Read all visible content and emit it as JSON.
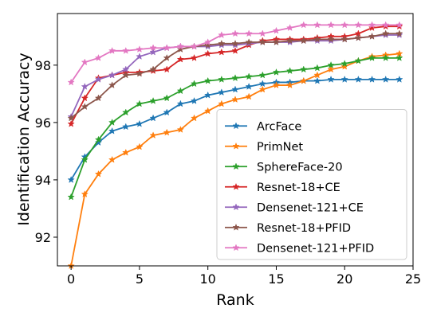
{
  "chart_data": {
    "type": "line",
    "title": "",
    "xlabel": "Rank",
    "ylabel": "Identification Accuracy",
    "xlim": [
      -1,
      25
    ],
    "ylim": [
      91.0,
      99.8
    ],
    "xticks": [
      0,
      5,
      10,
      15,
      20,
      25
    ],
    "yticks": [
      92,
      94,
      96,
      98
    ],
    "xtick_labels": [
      "0",
      "5",
      "10",
      "15",
      "20",
      "25"
    ],
    "ytick_labels": [
      "92",
      "94",
      "96",
      "98"
    ],
    "grid": false,
    "legend_position": "lower-right",
    "x": [
      0,
      1,
      2,
      3,
      4,
      5,
      6,
      7,
      8,
      9,
      10,
      11,
      12,
      13,
      14,
      15,
      16,
      17,
      18,
      19,
      20,
      21,
      22,
      23,
      24
    ],
    "series": [
      {
        "name": "ArcFace",
        "color": "#1f77b4",
        "values": [
          94.0,
          94.8,
          95.3,
          95.7,
          95.85,
          95.95,
          96.15,
          96.35,
          96.65,
          96.75,
          96.95,
          97.05,
          97.15,
          97.25,
          97.35,
          97.4,
          97.4,
          97.45,
          97.45,
          97.5,
          97.5,
          97.5,
          97.5,
          97.5,
          97.5
        ]
      },
      {
        "name": "PrimNet",
        "color": "#ff7f0e",
        "values": [
          91.0,
          93.5,
          94.2,
          94.7,
          94.95,
          95.15,
          95.55,
          95.65,
          95.75,
          96.15,
          96.4,
          96.65,
          96.8,
          96.9,
          97.15,
          97.3,
          97.3,
          97.45,
          97.65,
          97.85,
          97.95,
          98.15,
          98.3,
          98.35,
          98.4
        ]
      },
      {
        "name": "SphereFace-20",
        "color": "#2ca02c",
        "values": [
          93.4,
          94.7,
          95.4,
          96.0,
          96.35,
          96.65,
          96.75,
          96.85,
          97.1,
          97.35,
          97.45,
          97.5,
          97.55,
          97.6,
          97.65,
          97.75,
          97.8,
          97.85,
          97.9,
          98.0,
          98.05,
          98.15,
          98.25,
          98.25,
          98.25
        ]
      },
      {
        "name": "Resnet-18+CE",
        "color": "#d62728",
        "values": [
          95.95,
          96.85,
          97.55,
          97.65,
          97.75,
          97.75,
          97.8,
          97.85,
          98.2,
          98.25,
          98.4,
          98.45,
          98.5,
          98.7,
          98.85,
          98.9,
          98.9,
          98.9,
          98.95,
          99.0,
          99.0,
          99.1,
          99.3,
          99.35,
          99.35
        ]
      },
      {
        "name": "Densenet-121+CE",
        "color": "#9467bd",
        "values": [
          96.2,
          97.25,
          97.5,
          97.65,
          97.85,
          98.3,
          98.45,
          98.6,
          98.65,
          98.65,
          98.65,
          98.7,
          98.7,
          98.75,
          98.8,
          98.8,
          98.8,
          98.85,
          98.85,
          98.85,
          98.9,
          98.95,
          99.0,
          99.05,
          99.05
        ]
      },
      {
        "name": "Resnet-18+PFID",
        "color": "#8c564b",
        "values": [
          96.15,
          96.55,
          96.85,
          97.3,
          97.65,
          97.7,
          97.85,
          98.25,
          98.55,
          98.65,
          98.7,
          98.75,
          98.75,
          98.8,
          98.8,
          98.8,
          98.85,
          98.85,
          98.9,
          98.9,
          98.9,
          98.95,
          99.0,
          99.1,
          99.1
        ]
      },
      {
        "name": "Densenet-121+PFID",
        "color": "#e377c2",
        "values": [
          97.4,
          98.1,
          98.25,
          98.5,
          98.5,
          98.55,
          98.6,
          98.6,
          98.65,
          98.65,
          98.8,
          99.05,
          99.1,
          99.1,
          99.1,
          99.2,
          99.3,
          99.4,
          99.4,
          99.4,
          99.4,
          99.4,
          99.4,
          99.4,
          99.4
        ]
      }
    ]
  }
}
